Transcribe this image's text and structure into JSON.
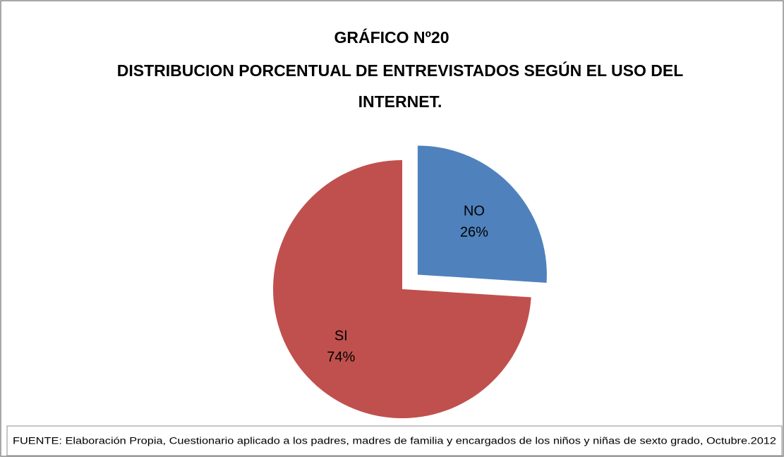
{
  "chart_data": {
    "type": "pie",
    "title": [
      "GRÁFICO Nº20",
      "DISTRIBUCION PORCENTUAL  DE ENTREVISTADOS SEGÚN  EL USO DEL",
      "INTERNET."
    ],
    "categories": [
      "NO",
      "SI"
    ],
    "values": [
      26,
      74
    ],
    "value_labels": [
      "26%",
      "74%"
    ],
    "colors": [
      "#4f81bd",
      "#c0504d"
    ],
    "exploded": [
      true,
      false
    ],
    "source": "FUENTE: Elaboración Propia,  Cuestionario aplicado a los padres, madres de familia y encargados de los niños y niñas de sexto grado, Octubre.2012"
  }
}
